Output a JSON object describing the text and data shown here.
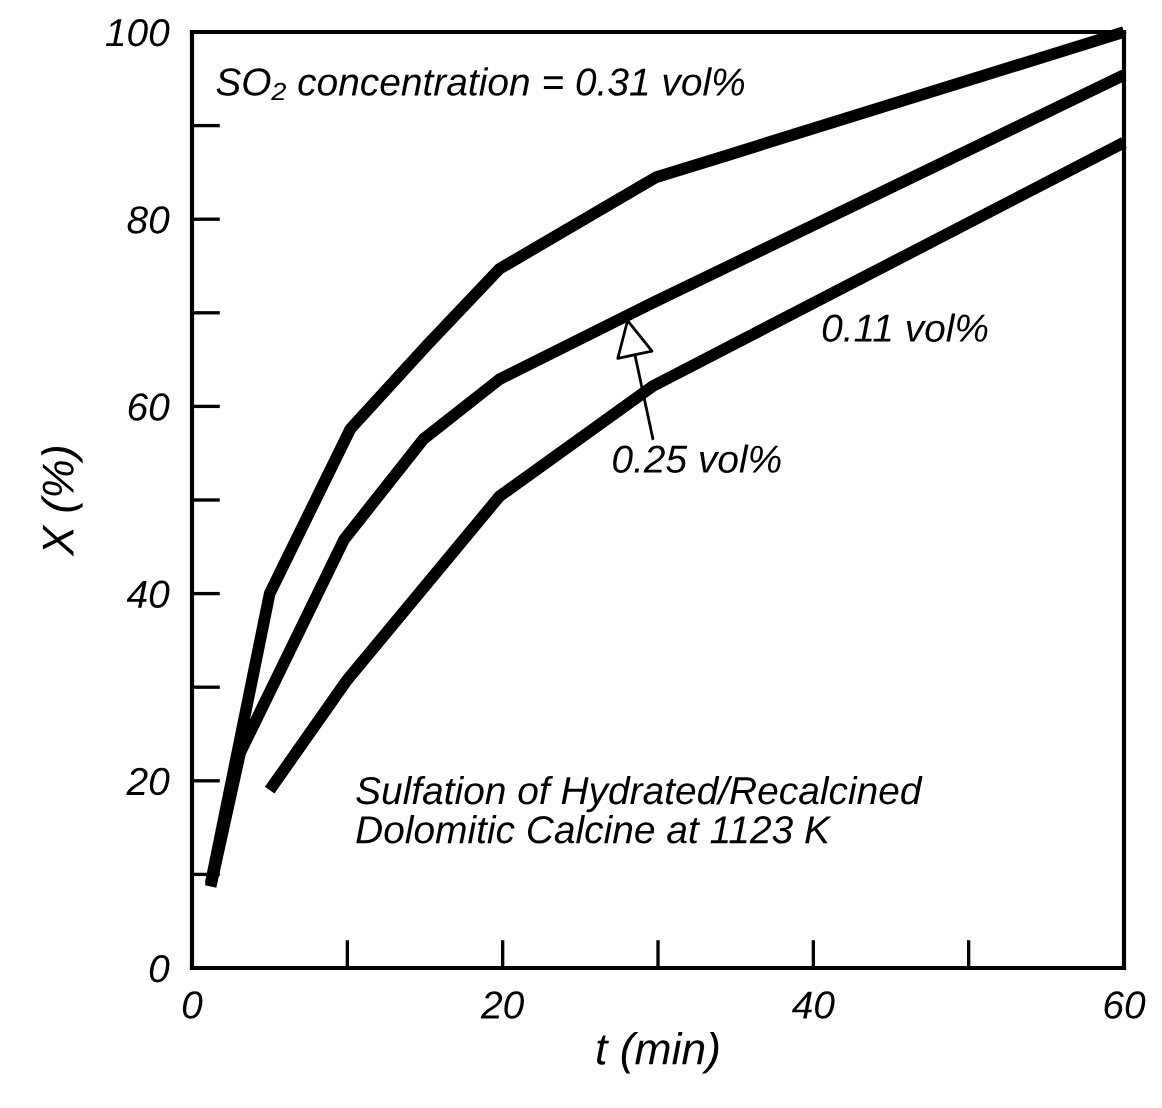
{
  "chart_data": {
    "type": "line",
    "xlabel": "t (min)",
    "ylabel": "X (%)",
    "xlim": [
      0,
      60
    ],
    "ylim": [
      0,
      100
    ],
    "xticks": [
      0,
      {
        "value": 10,
        "label": null
      },
      20,
      {
        "value": 30,
        "label": null
      },
      40,
      {
        "value": 50,
        "label": null
      },
      60
    ],
    "yticks": [
      0,
      {
        "value": 10,
        "label": null
      },
      20,
      {
        "value": 30,
        "label": null
      },
      40,
      {
        "value": 50,
        "label": null
      },
      60,
      {
        "value": 70,
        "label": null
      },
      80,
      {
        "value": 90,
        "label": null
      },
      100
    ],
    "grid": false,
    "legend": false,
    "marker": "none",
    "line_style": "solid",
    "series": [
      {
        "name": "SO₂ concentration = 0.31 vol%",
        "color": "#000000",
        "x": [
          1.2,
          5.0,
          10.2,
          15.1,
          19.8,
          29.9,
          34.4,
          60
        ],
        "values": [
          9,
          40,
          57.6,
          66.5,
          74.7,
          84.5,
          86.8,
          100
        ]
      },
      {
        "color": "#000000",
        "x": [
          1.2,
          3.1,
          9.8,
          14.9,
          19.8,
          29.7,
          60
        ],
        "values": [
          8.7,
          23,
          45.8,
          56.5,
          62.9,
          71.1,
          95.4
        ]
      },
      {
        "name": "0.11 vol%",
        "color": "#000000",
        "x": [
          5.0,
          10.0,
          19.8,
          29.7,
          60
        ],
        "values": [
          19,
          30.8,
          50.4,
          62.2,
          88.2
        ]
      }
    ],
    "annotations": [
      {
        "text": "0.25 vol%",
        "x": 28,
        "y": 69.5
      },
      "Sulfation of Hydrated/Recalcined\nDolomitic Calcine at 1123 K"
    ]
  }
}
